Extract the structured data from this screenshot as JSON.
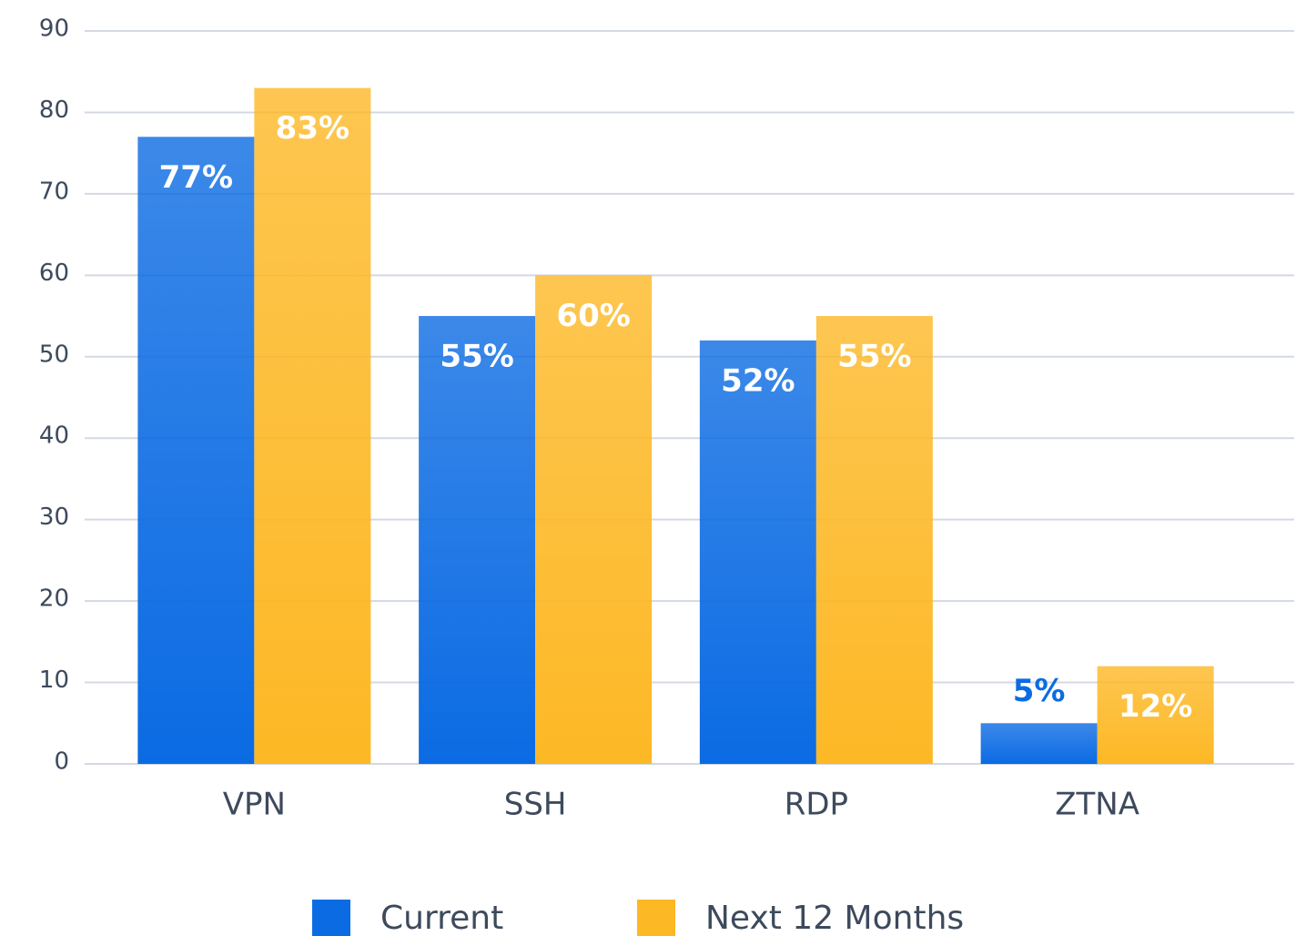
{
  "chart_data": {
    "type": "bar",
    "categories": [
      "VPN",
      "SSH",
      "RDP",
      "ZTNA"
    ],
    "series": [
      {
        "name": "Current",
        "color": "#0b6be3",
        "values": [
          77,
          55,
          52,
          5
        ],
        "value_labels": [
          "77%",
          "55%",
          "52%",
          "5%"
        ]
      },
      {
        "name": "Next 12 Months",
        "color": "#fdb825",
        "values": [
          83,
          60,
          55,
          12
        ],
        "value_labels": [
          "83%",
          "60%",
          "55%",
          "12%"
        ]
      }
    ],
    "ylim": [
      0,
      90
    ],
    "yticks": [
      0,
      10,
      20,
      30,
      40,
      50,
      60,
      70,
      80,
      90
    ],
    "grid": true,
    "legend": "bottom"
  }
}
